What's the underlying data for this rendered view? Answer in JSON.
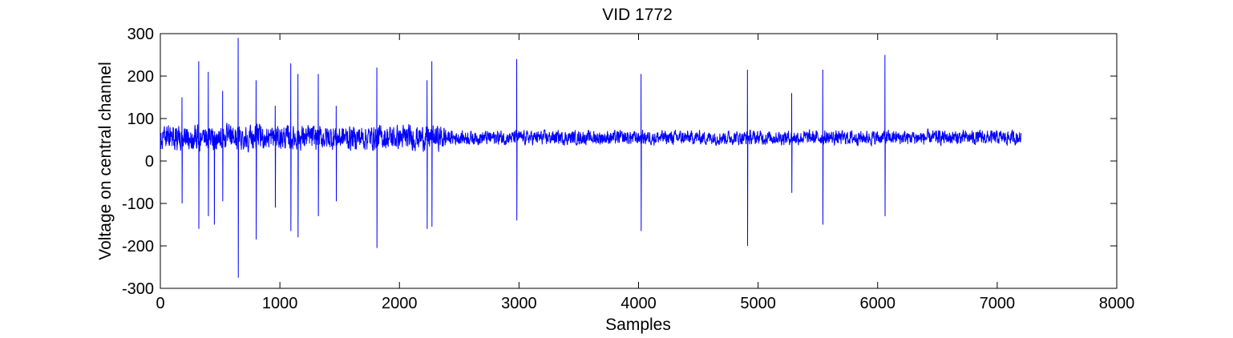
{
  "chart_data": {
    "type": "line",
    "title": "VID 1772",
    "xlabel": "Samples",
    "ylabel": "Voltage on central channel",
    "xlim": [
      0,
      8000
    ],
    "ylim": [
      -300,
      300
    ],
    "xticks": [
      0,
      1000,
      2000,
      3000,
      4000,
      5000,
      6000,
      7000,
      8000
    ],
    "yticks": [
      -300,
      -200,
      -100,
      0,
      100,
      200,
      300
    ],
    "xtick_labels": [
      "0",
      "1000",
      "2000",
      "3000",
      "4000",
      "5000",
      "6000",
      "7000",
      "8000"
    ],
    "ytick_labels": [
      "-300",
      "-200",
      "-100",
      "0",
      "100",
      "200",
      "300"
    ],
    "grid": false,
    "series_color": "#0000ff",
    "series": [
      {
        "baseline": 55,
        "x_start": 0,
        "x_end": 7200,
        "spikes": [
          {
            "x": 180,
            "min": -100,
            "max": 150
          },
          {
            "x": 320,
            "min": -160,
            "max": 235
          },
          {
            "x": 400,
            "min": -130,
            "max": 210
          },
          {
            "x": 450,
            "min": -150,
            "max": 60
          },
          {
            "x": 520,
            "min": -95,
            "max": 165
          },
          {
            "x": 650,
            "min": -275,
            "max": 290
          },
          {
            "x": 800,
            "min": -185,
            "max": 190
          },
          {
            "x": 960,
            "min": -110,
            "max": 130
          },
          {
            "x": 1090,
            "min": -165,
            "max": 230
          },
          {
            "x": 1150,
            "min": -180,
            "max": 205
          },
          {
            "x": 1320,
            "min": -130,
            "max": 205
          },
          {
            "x": 1470,
            "min": -95,
            "max": 130
          },
          {
            "x": 1810,
            "min": -205,
            "max": 220
          },
          {
            "x": 2230,
            "min": -160,
            "max": 190
          },
          {
            "x": 2270,
            "min": -155,
            "max": 235
          },
          {
            "x": 2980,
            "min": -140,
            "max": 240
          },
          {
            "x": 4020,
            "min": -165,
            "max": 205
          },
          {
            "x": 4910,
            "min": -200,
            "max": 215
          },
          {
            "x": 5280,
            "min": -75,
            "max": 160
          },
          {
            "x": 5540,
            "min": -150,
            "max": 215
          },
          {
            "x": 6060,
            "min": -130,
            "max": 250
          }
        ]
      }
    ]
  }
}
